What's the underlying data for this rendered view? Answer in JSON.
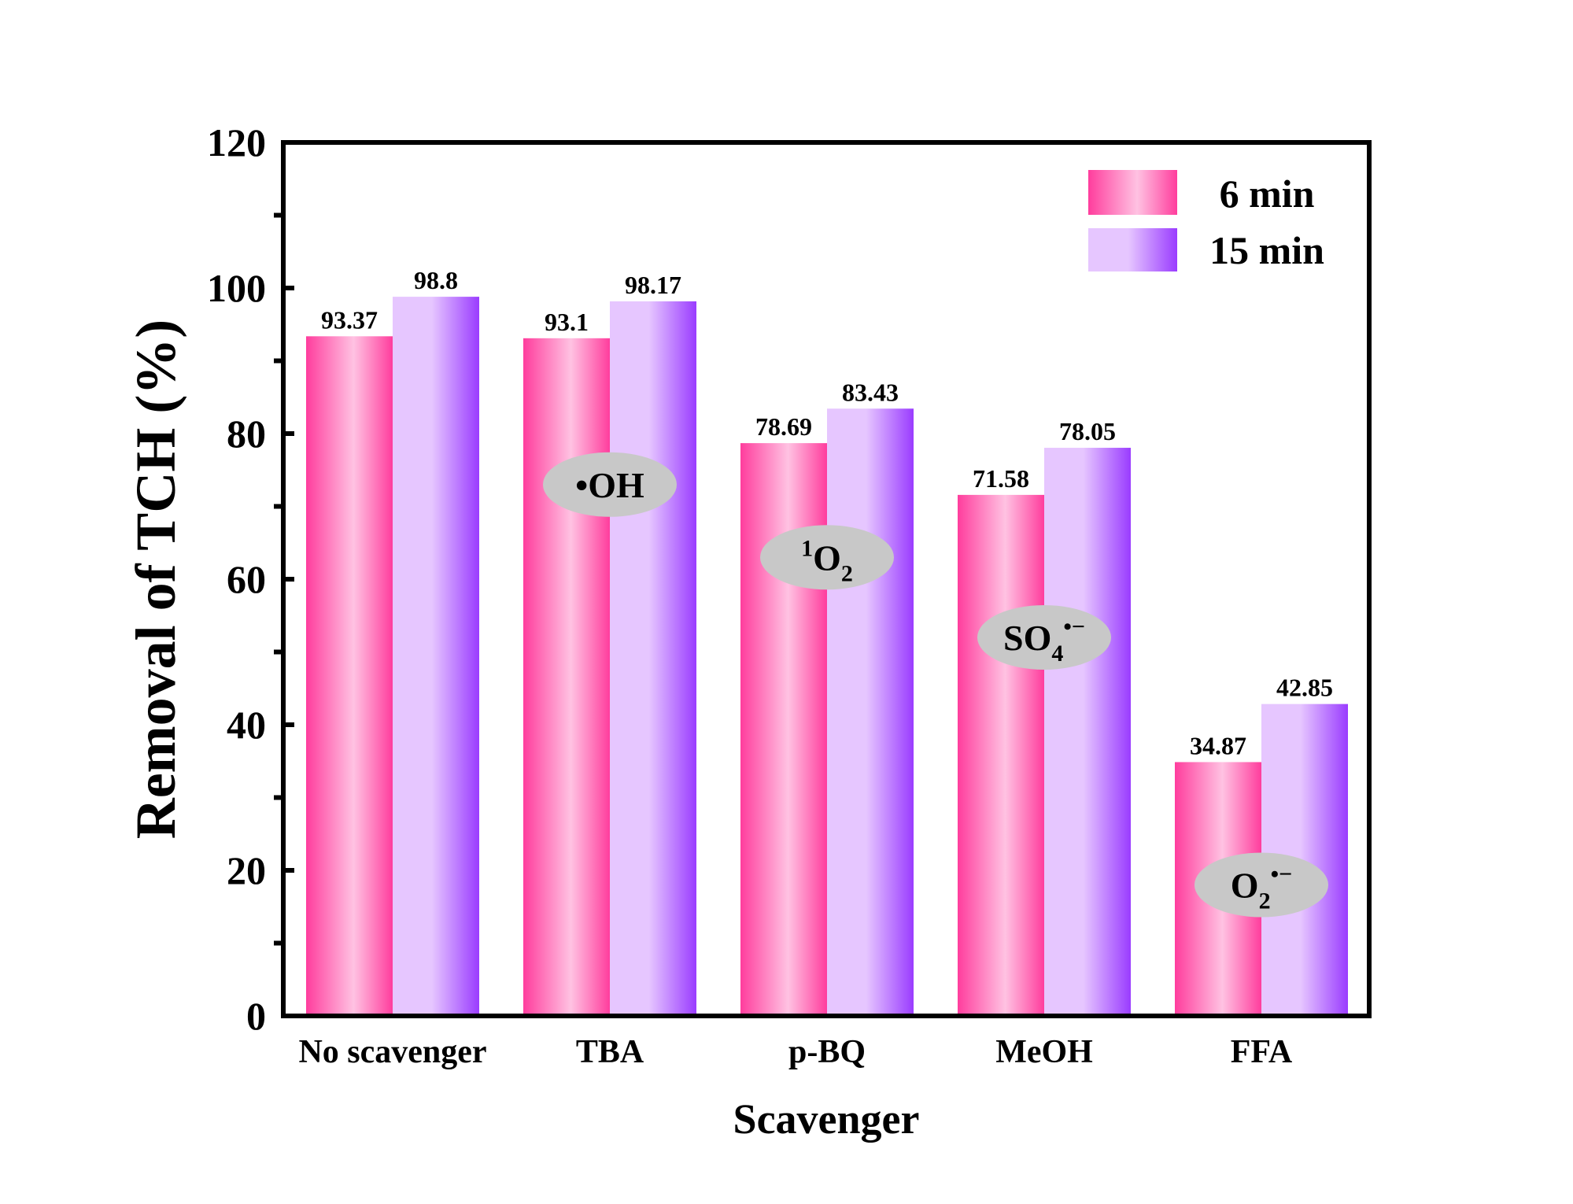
{
  "chart_data": {
    "type": "bar",
    "title": "",
    "xlabel": "Scavenger",
    "ylabel": "Removal of TCH (%)",
    "ylim": [
      0,
      120
    ],
    "yticks": [
      "0",
      "20",
      "40",
      "60",
      "80",
      "100",
      "120"
    ],
    "categories": [
      "No scavenger",
      "TBA",
      "p-BQ",
      "MeOH",
      "FFA"
    ],
    "series": [
      {
        "name": "6 min",
        "values": [
          93.37,
          93.1,
          78.69,
          71.58,
          34.87
        ],
        "labels": [
          "93.37",
          "93.1",
          "78.69",
          "71.58",
          "34.87"
        ]
      },
      {
        "name": "15 min",
        "values": [
          98.8,
          98.17,
          83.43,
          78.05,
          42.85
        ],
        "labels": [
          "98.8",
          "98.17",
          "83.43",
          "78.05",
          "42.85"
        ]
      }
    ],
    "legend_position": "top-right",
    "annotations": [
      {
        "category": "TBA",
        "at_value": 73,
        "base": "•OH",
        "pre_sup": "",
        "sub": "",
        "sup": ""
      },
      {
        "category": "p-BQ",
        "at_value": 63,
        "base": "O",
        "pre_sup": "1",
        "sub": "2",
        "sup": ""
      },
      {
        "category": "MeOH",
        "at_value": 52,
        "base": "SO",
        "pre_sup": "",
        "sub": "4",
        "sup": "•−"
      },
      {
        "category": "FFA",
        "at_value": 18,
        "base": "O",
        "pre_sup": "",
        "sub": "2",
        "sup": "•−"
      }
    ]
  },
  "colors": {
    "series_6min_edge": "#ff3d9d",
    "series_6min_light": "#ffc2e2",
    "series_15min_edge": "#9a3cff",
    "series_15min_light": "#e6c6ff",
    "annotation_fill": "#c8c8c8",
    "axis": "#000000"
  }
}
